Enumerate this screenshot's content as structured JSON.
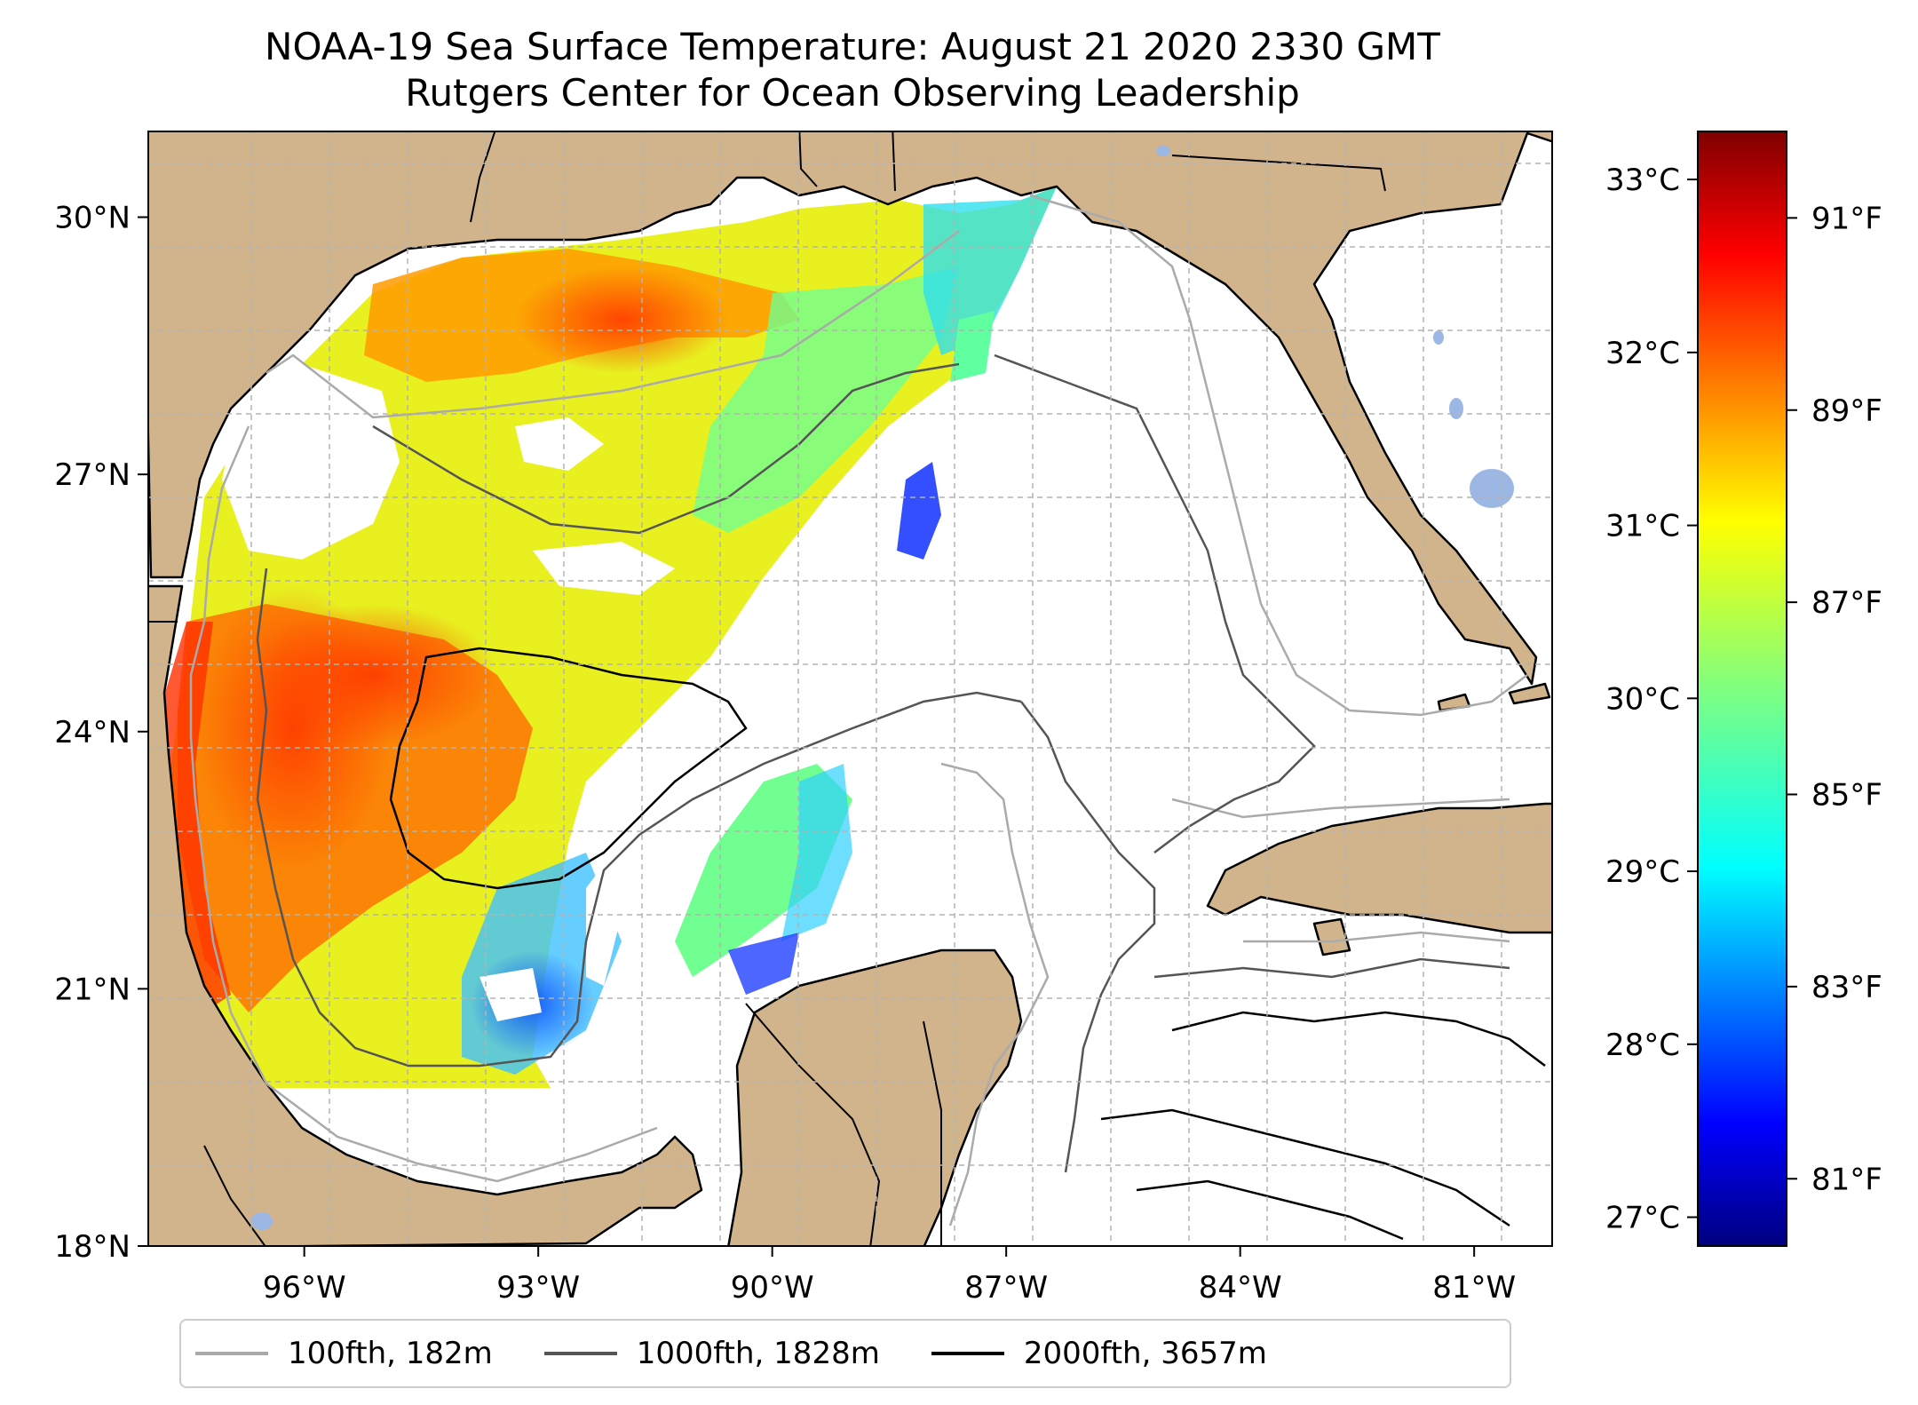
{
  "title": {
    "line1": "NOAA-19 Sea Surface Temperature: August 21 2020 2330 GMT",
    "line2": "Rutgers Center for Ocean Observing Leadership"
  },
  "map": {
    "lon_range": [
      -98.0,
      -80.0
    ],
    "lat_range": [
      18.0,
      31.0
    ],
    "lon_ticks": [
      "96°W",
      "93°W",
      "90°W",
      "87°W",
      "84°W",
      "81°W"
    ],
    "lon_tick_values": [
      -96,
      -93,
      -90,
      -87,
      -84,
      -81
    ],
    "lat_ticks": [
      "30°N",
      "27°N",
      "24°N",
      "21°N",
      "18°N"
    ],
    "lat_tick_values": [
      30,
      27,
      24,
      21,
      18
    ],
    "gridlines": true,
    "land_color": "#d2b48c",
    "lake_color": "#9cb7e4",
    "ocean_color": "#ffffff"
  },
  "colorbar": {
    "colormap": "jet",
    "celsius_ticks": [
      "33°C",
      "32°C",
      "31°C",
      "30°C",
      "29°C",
      "28°C",
      "27°C"
    ],
    "celsius_values": [
      33,
      32,
      31,
      30,
      29,
      28,
      27
    ],
    "fahrenheit_ticks": [
      "91°F",
      "89°F",
      "87°F",
      "85°F",
      "83°F",
      "81°F"
    ],
    "fahrenheit_values": [
      91,
      89,
      87,
      85,
      83,
      81
    ],
    "range_f": [
      80.3,
      91.9
    ]
  },
  "legend": {
    "items": [
      {
        "label": "100fth, 182m",
        "color": "#aaaaaa"
      },
      {
        "label": "1000fth, 1828m",
        "color": "#555555"
      },
      {
        "label": "2000fth, 3657m",
        "color": "#000000"
      }
    ],
    "placement": "bottom"
  }
}
